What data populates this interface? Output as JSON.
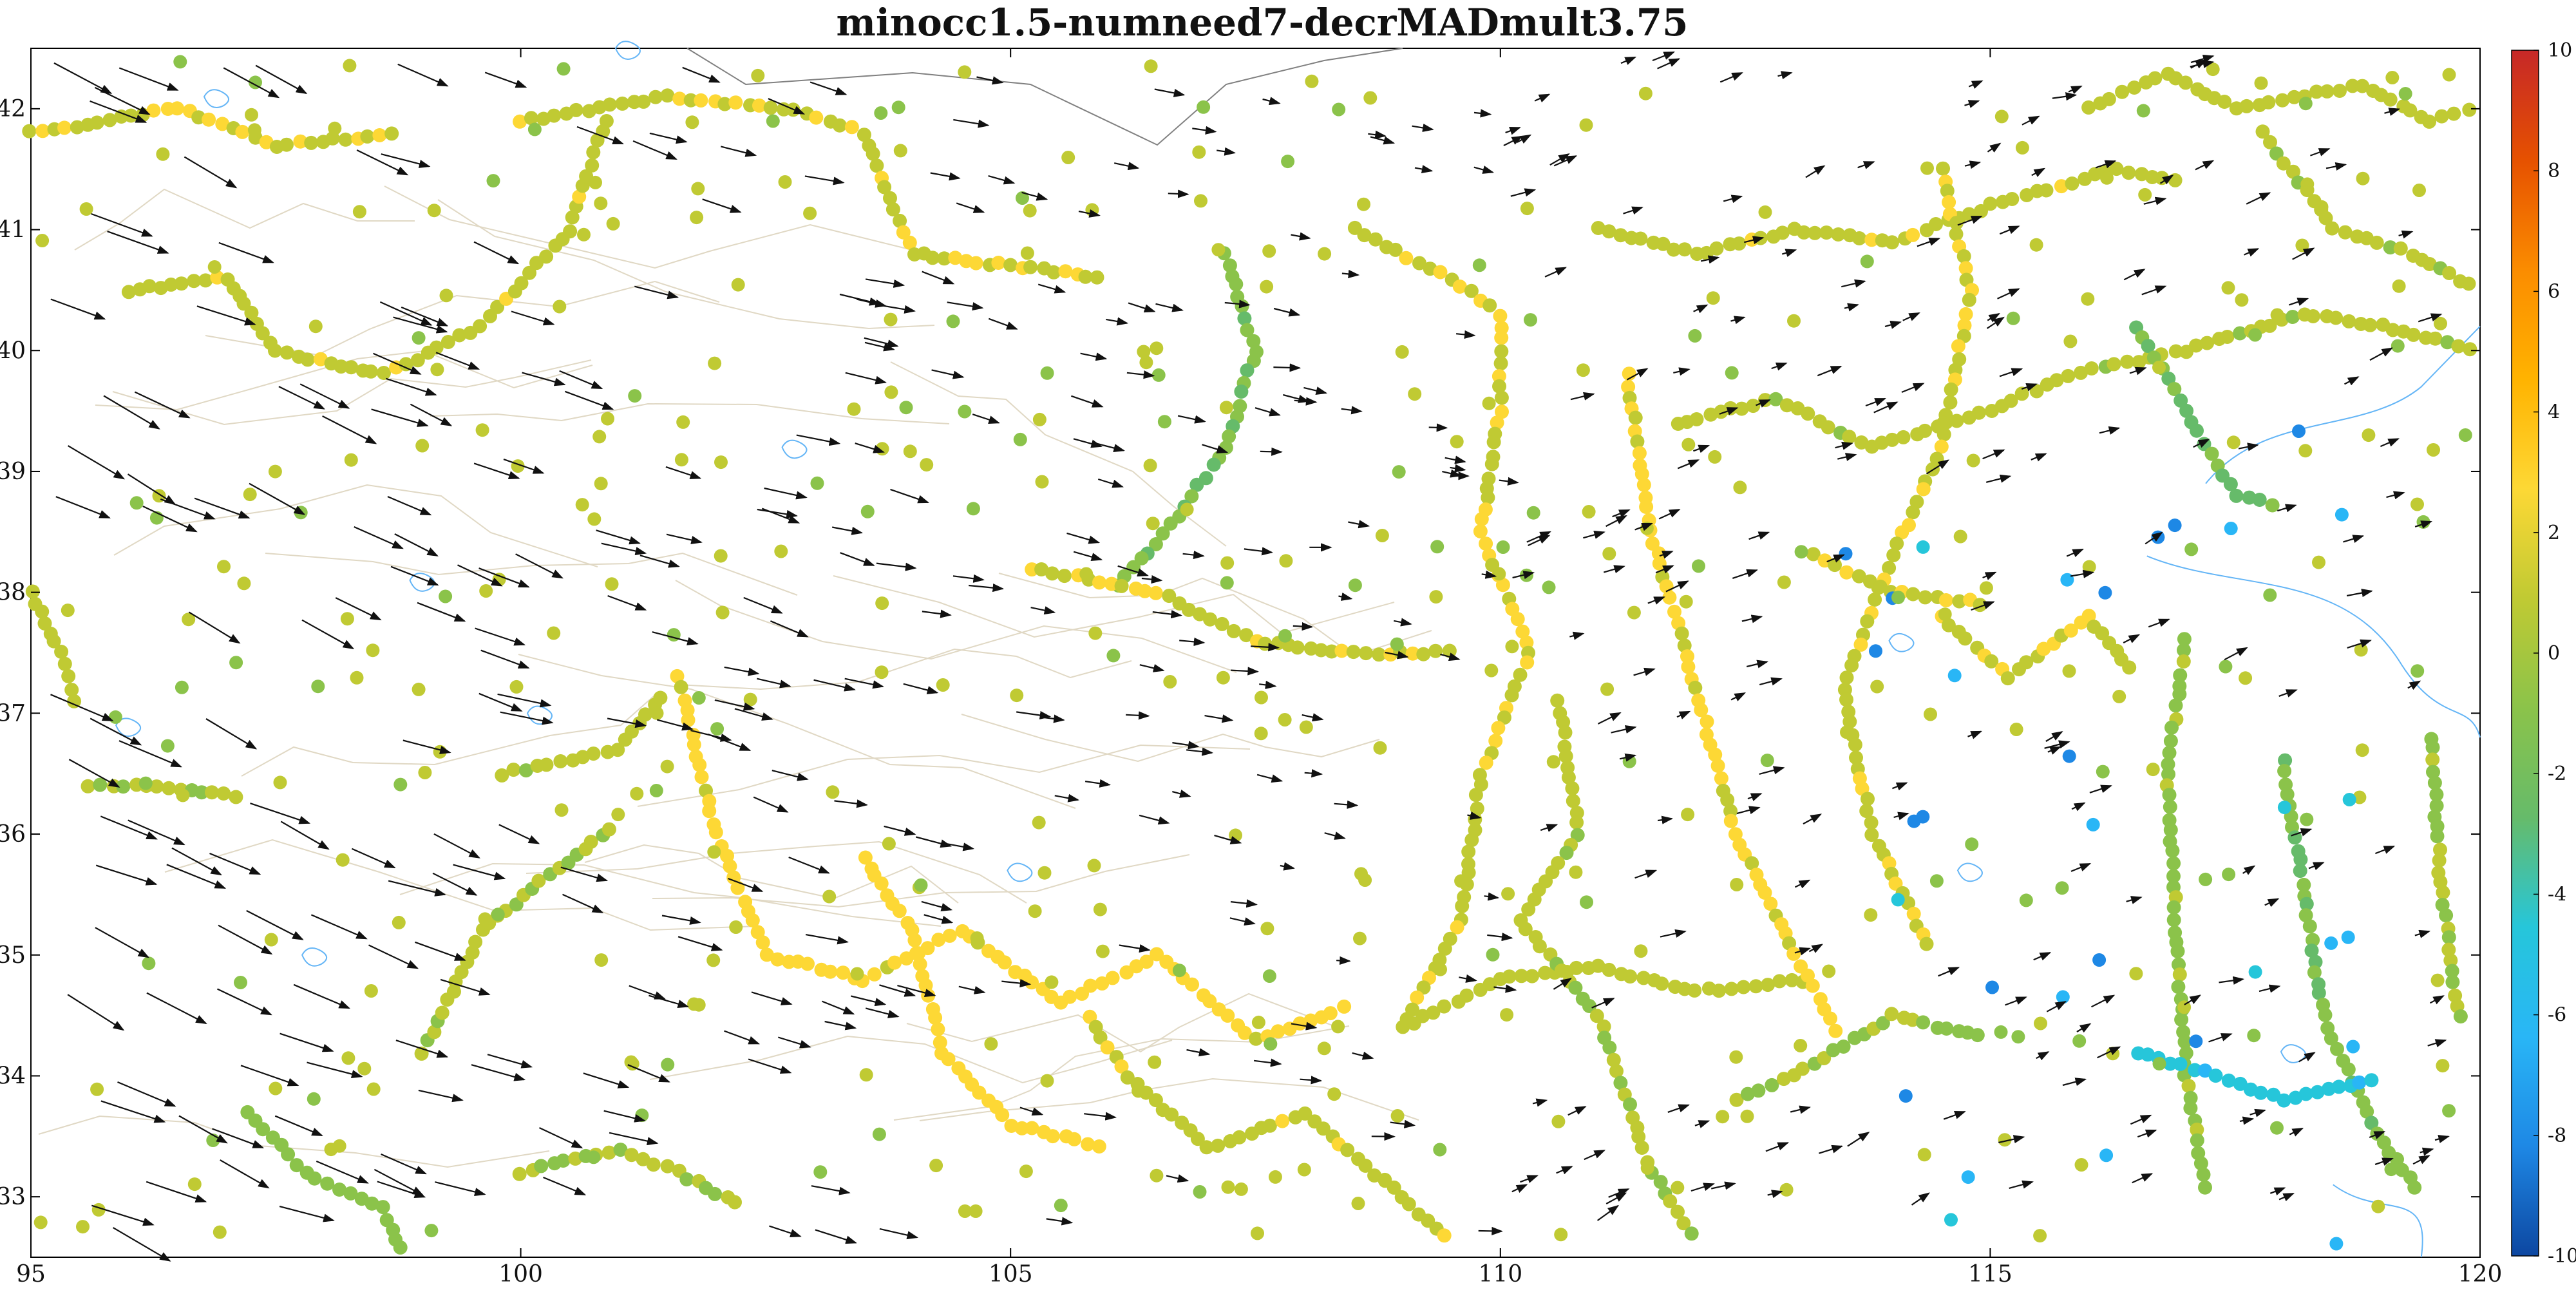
{
  "title": "minocc1.5-numneed7-decrMADmult3.75",
  "map": {
    "lon_range": [
      95,
      120
    ],
    "lat_range": [
      32.5,
      42.5
    ],
    "x_ticks": [
      95,
      100,
      105,
      110,
      115,
      120
    ],
    "x_tick_labels": [
      "95",
      "100",
      "105",
      "110",
      "115",
      "120"
    ],
    "y_ticks": [
      33,
      34,
      35,
      36,
      37,
      38,
      39,
      40,
      41,
      42
    ],
    "y_tick_labels": [
      "33",
      "34",
      "35",
      "36",
      "37",
      "38",
      "39",
      "40",
      "41",
      "42"
    ],
    "grid": false,
    "station_symbol": "filled-circle",
    "vector_symbol": "arrow"
  },
  "colorbar": {
    "range": [
      -10,
      10
    ],
    "ticks": [
      10,
      8,
      6,
      4,
      2,
      0,
      -2,
      -4,
      -6,
      -8,
      -10
    ],
    "tick_labels": [
      "10",
      "8",
      "6",
      "4",
      "2",
      "0",
      "-2",
      "-4",
      "-6",
      "-8",
      "-10"
    ],
    "colors": [
      "#0d47a1",
      "#1e88e5",
      "#29b6f6",
      "#26c6da",
      "#66bb6a",
      "#8bc34a",
      "#c0ca33",
      "#fdd835",
      "#ffb300",
      "#fb8c00",
      "#e65100",
      "#c62828"
    ]
  },
  "colors": {
    "coast_water": "#64b5f6",
    "border": "#808080",
    "terrain_line": "#e0d8c4",
    "arrow": "#111111",
    "axis": "#000000"
  }
}
